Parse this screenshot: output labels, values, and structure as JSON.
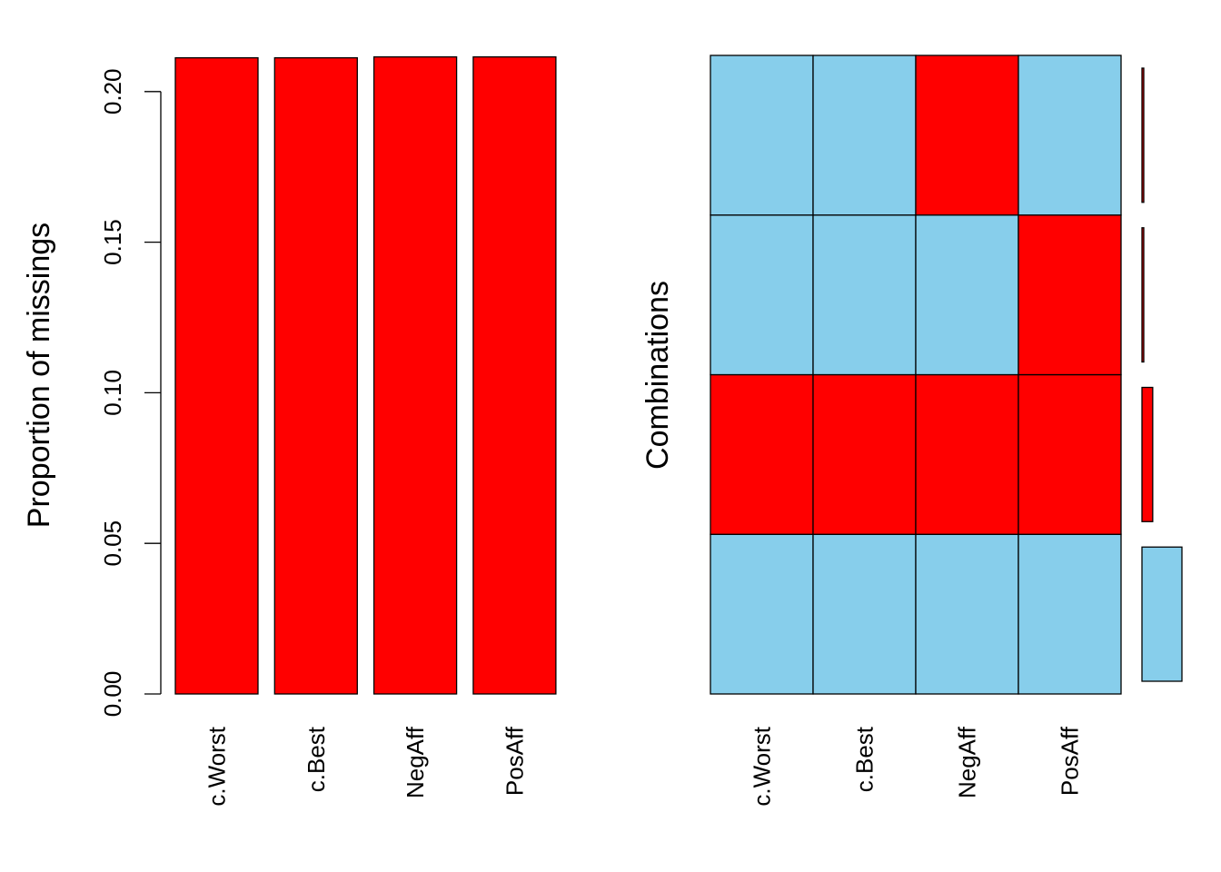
{
  "chart_data": [
    {
      "type": "bar",
      "ylabel": "Proportion of missings",
      "categories": [
        "c.Worst",
        "c.Best",
        "NegAff",
        "PosAff"
      ],
      "values": [
        0.2112,
        0.2112,
        0.2115,
        0.2115
      ],
      "ylim": [
        0,
        0.21
      ],
      "yticks": [
        "0.00",
        "0.05",
        "0.10",
        "0.15",
        "0.20"
      ],
      "colors": {
        "bar": "#FF0000",
        "outline": "#000000"
      }
    },
    {
      "type": "heatmap",
      "ylabel": "Combinations",
      "columns": [
        "c.Worst",
        "c.Best",
        "NegAff",
        "PosAff"
      ],
      "rows_bottom_to_top": [
        {
          "missing": [
            false,
            false,
            false,
            false
          ],
          "frequency": 0.78
        },
        {
          "missing": [
            true,
            true,
            true,
            true
          ],
          "frequency": 0.21
        },
        {
          "missing": [
            false,
            false,
            false,
            true
          ],
          "frequency": 0.002
        },
        {
          "missing": [
            false,
            false,
            true,
            false
          ],
          "frequency": 0.002
        }
      ],
      "colors": {
        "observed": "#87CEEB",
        "missing": "#FF0000",
        "outline": "#000000"
      }
    }
  ]
}
